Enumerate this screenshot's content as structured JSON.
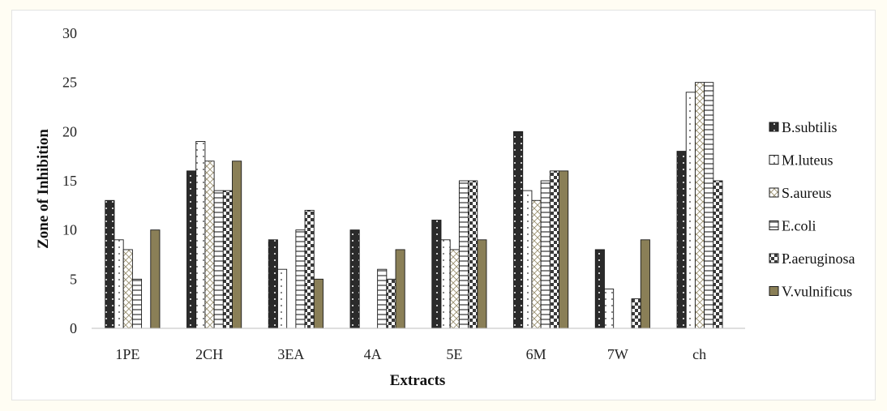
{
  "chart_data": {
    "type": "bar",
    "title": "",
    "xlabel": "Extracts",
    "ylabel": "Zone of Inhibition",
    "ylim": [
      0,
      30
    ],
    "yticks": [
      0,
      5,
      10,
      15,
      20,
      25,
      30
    ],
    "grid": false,
    "legend_position": "right",
    "categories": [
      "1PE",
      "2CH",
      "3EA",
      "4A",
      "5E",
      "6M",
      "7W",
      "ch"
    ],
    "series": [
      {
        "name": "B.subtilis",
        "pattern": "dark-dots",
        "values": [
          13,
          16,
          9,
          10,
          11,
          20,
          8,
          18
        ]
      },
      {
        "name": "M.luteus",
        "pattern": "white-dots",
        "values": [
          9,
          19,
          6,
          0,
          9,
          14,
          4,
          24
        ]
      },
      {
        "name": "S.aureus",
        "pattern": "crosshatch",
        "values": [
          8,
          17,
          0,
          0,
          8,
          13,
          0,
          25
        ]
      },
      {
        "name": "E.coli",
        "pattern": "hlines",
        "values": [
          5,
          14,
          10,
          6,
          15,
          15,
          0,
          25
        ]
      },
      {
        "name": "P.aeruginosa",
        "pattern": "checker",
        "values": [
          0,
          14,
          12,
          5,
          15,
          16,
          3,
          15
        ]
      },
      {
        "name": "V.vulnificus",
        "pattern": "solid-olive",
        "values": [
          10,
          17,
          5,
          8,
          9,
          16,
          9,
          0
        ]
      }
    ],
    "colors": {
      "dark": "#2b2b2b",
      "olive": "#8a7f57",
      "outline": "#1a1a1a"
    }
  }
}
